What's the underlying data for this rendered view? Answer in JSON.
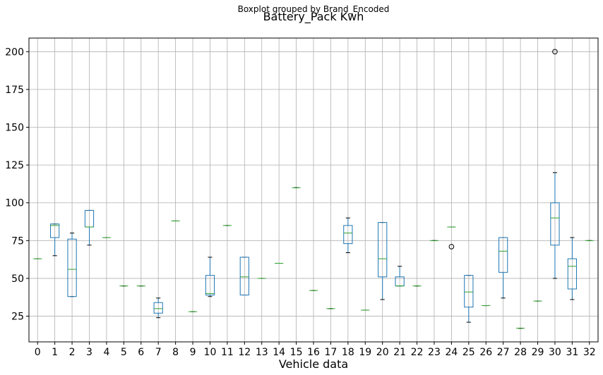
{
  "chart_data": {
    "type": "boxplot",
    "suptitle": "Boxplot grouped by Brand_Encoded",
    "title": "Battery_Pack Kwh",
    "xlabel": "Vehicle data",
    "ylabel": "",
    "ylim": [
      8,
      209
    ],
    "yticks": [
      25,
      50,
      75,
      100,
      125,
      150,
      175,
      200
    ],
    "grid": true,
    "categories": [
      "0",
      "1",
      "2",
      "3",
      "4",
      "5",
      "6",
      "7",
      "8",
      "9",
      "10",
      "11",
      "12",
      "13",
      "14",
      "15",
      "16",
      "17",
      "18",
      "19",
      "20",
      "21",
      "22",
      "23",
      "24",
      "25",
      "26",
      "27",
      "28",
      "29",
      "30",
      "31",
      "32"
    ],
    "boxes": [
      {
        "category": "0",
        "whislo": 63,
        "q1": 63,
        "med": 63,
        "q3": 63,
        "whishi": 63,
        "fliers": []
      },
      {
        "category": "1",
        "whislo": 65,
        "q1": 77,
        "med": 85,
        "q3": 86,
        "whishi": 86,
        "fliers": []
      },
      {
        "category": "2",
        "whislo": 38,
        "q1": 38,
        "med": 56,
        "q3": 76,
        "whishi": 80,
        "fliers": []
      },
      {
        "category": "3",
        "whislo": 72,
        "q1": 84,
        "med": 84,
        "q3": 95,
        "whishi": 95,
        "fliers": []
      },
      {
        "category": "4",
        "whislo": 77,
        "q1": 77,
        "med": 77,
        "q3": 77,
        "whishi": 77,
        "fliers": []
      },
      {
        "category": "5",
        "whislo": 45,
        "q1": 45,
        "med": 45,
        "q3": 45,
        "whishi": 45,
        "fliers": []
      },
      {
        "category": "6",
        "whislo": 45,
        "q1": 45,
        "med": 45,
        "q3": 45,
        "whishi": 45,
        "fliers": []
      },
      {
        "category": "7",
        "whislo": 24,
        "q1": 27,
        "med": 30,
        "q3": 34,
        "whishi": 37,
        "fliers": []
      },
      {
        "category": "8",
        "whislo": 88,
        "q1": 88,
        "med": 88,
        "q3": 88,
        "whishi": 88,
        "fliers": []
      },
      {
        "category": "9",
        "whislo": 28,
        "q1": 28,
        "med": 28,
        "q3": 28,
        "whishi": 28,
        "fliers": []
      },
      {
        "category": "10",
        "whislo": 38,
        "q1": 39,
        "med": 40,
        "q3": 52,
        "whishi": 64,
        "fliers": []
      },
      {
        "category": "11",
        "whislo": 85,
        "q1": 85,
        "med": 85,
        "q3": 85,
        "whishi": 85,
        "fliers": []
      },
      {
        "category": "12",
        "whislo": 39,
        "q1": 39,
        "med": 51,
        "q3": 64,
        "whishi": 64,
        "fliers": []
      },
      {
        "category": "13",
        "whislo": 50,
        "q1": 50,
        "med": 50,
        "q3": 50,
        "whishi": 50,
        "fliers": []
      },
      {
        "category": "14",
        "whislo": 60,
        "q1": 60,
        "med": 60,
        "q3": 60,
        "whishi": 60,
        "fliers": []
      },
      {
        "category": "15",
        "whislo": 110,
        "q1": 110,
        "med": 110,
        "q3": 110,
        "whishi": 110,
        "fliers": []
      },
      {
        "category": "16",
        "whislo": 42,
        "q1": 42,
        "med": 42,
        "q3": 42,
        "whishi": 42,
        "fliers": []
      },
      {
        "category": "17",
        "whislo": 30,
        "q1": 30,
        "med": 30,
        "q3": 30,
        "whishi": 30,
        "fliers": []
      },
      {
        "category": "18",
        "whislo": 67,
        "q1": 73,
        "med": 80,
        "q3": 85,
        "whishi": 90,
        "fliers": []
      },
      {
        "category": "19",
        "whislo": 29,
        "q1": 29,
        "med": 29,
        "q3": 29,
        "whishi": 29,
        "fliers": []
      },
      {
        "category": "20",
        "whislo": 36,
        "q1": 51,
        "med": 63,
        "q3": 87,
        "whishi": 87,
        "fliers": []
      },
      {
        "category": "21",
        "whislo": 45,
        "q1": 45,
        "med": 45,
        "q3": 51,
        "whishi": 58,
        "fliers": []
      },
      {
        "category": "22",
        "whislo": 45,
        "q1": 45,
        "med": 45,
        "q3": 45,
        "whishi": 45,
        "fliers": []
      },
      {
        "category": "23",
        "whislo": 75,
        "q1": 75,
        "med": 75,
        "q3": 75,
        "whishi": 75,
        "fliers": []
      },
      {
        "category": "24",
        "whislo": 84,
        "q1": 84,
        "med": 84,
        "q3": 84,
        "whishi": 84,
        "fliers": [
          71
        ]
      },
      {
        "category": "25",
        "whislo": 21,
        "q1": 31,
        "med": 41,
        "q3": 52,
        "whishi": 52,
        "fliers": []
      },
      {
        "category": "26",
        "whislo": 32,
        "q1": 32,
        "med": 32,
        "q3": 32,
        "whishi": 32,
        "fliers": []
      },
      {
        "category": "27",
        "whislo": 37,
        "q1": 54,
        "med": 68,
        "q3": 77,
        "whishi": 77,
        "fliers": []
      },
      {
        "category": "28",
        "whislo": 17,
        "q1": 17,
        "med": 17,
        "q3": 17,
        "whishi": 17,
        "fliers": []
      },
      {
        "category": "29",
        "whislo": 35,
        "q1": 35,
        "med": 35,
        "q3": 35,
        "whishi": 35,
        "fliers": []
      },
      {
        "category": "30",
        "whislo": 50,
        "q1": 72,
        "med": 90,
        "q3": 100,
        "whishi": 120,
        "fliers": [
          200
        ]
      },
      {
        "category": "31",
        "whislo": 36,
        "q1": 43,
        "med": 58,
        "q3": 63,
        "whishi": 77,
        "fliers": []
      },
      {
        "category": "32",
        "whislo": 75,
        "q1": 75,
        "med": 75,
        "q3": 75,
        "whishi": 75,
        "fliers": []
      }
    ],
    "colors": {
      "box": "#1f77b4",
      "median": "#2ca02c",
      "whisker": "#000000",
      "grid": "#b0b0b0",
      "flier": "#000000"
    }
  }
}
